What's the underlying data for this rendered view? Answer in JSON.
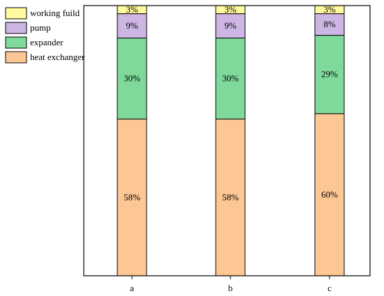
{
  "chart_data": {
    "type": "bar",
    "stacked": true,
    "categories": [
      "a",
      "b",
      "c"
    ],
    "ylim": [
      0,
      100
    ],
    "grid": false,
    "legend_position": "top-left",
    "series": [
      {
        "name": "heat exchanger",
        "color": "#FDC793",
        "values": [
          58,
          58,
          60
        ],
        "labels": [
          "58%",
          "58%",
          "60%"
        ]
      },
      {
        "name": "expander",
        "color": "#7FD99B",
        "values": [
          30,
          30,
          29
        ],
        "labels": [
          "30%",
          "30%",
          "29%"
        ]
      },
      {
        "name": "pump",
        "color": "#CDB6E3",
        "values": [
          9,
          9,
          8
        ],
        "labels": [
          "9%",
          "9%",
          "8%"
        ]
      },
      {
        "name": "working fuild",
        "color": "#FFFA9D",
        "values": [
          3,
          3,
          3
        ],
        "labels": [
          "3%",
          "3%",
          "3%"
        ]
      }
    ],
    "legend_order": [
      "working fuild",
      "pump",
      "expander",
      "heat exchanger"
    ]
  }
}
